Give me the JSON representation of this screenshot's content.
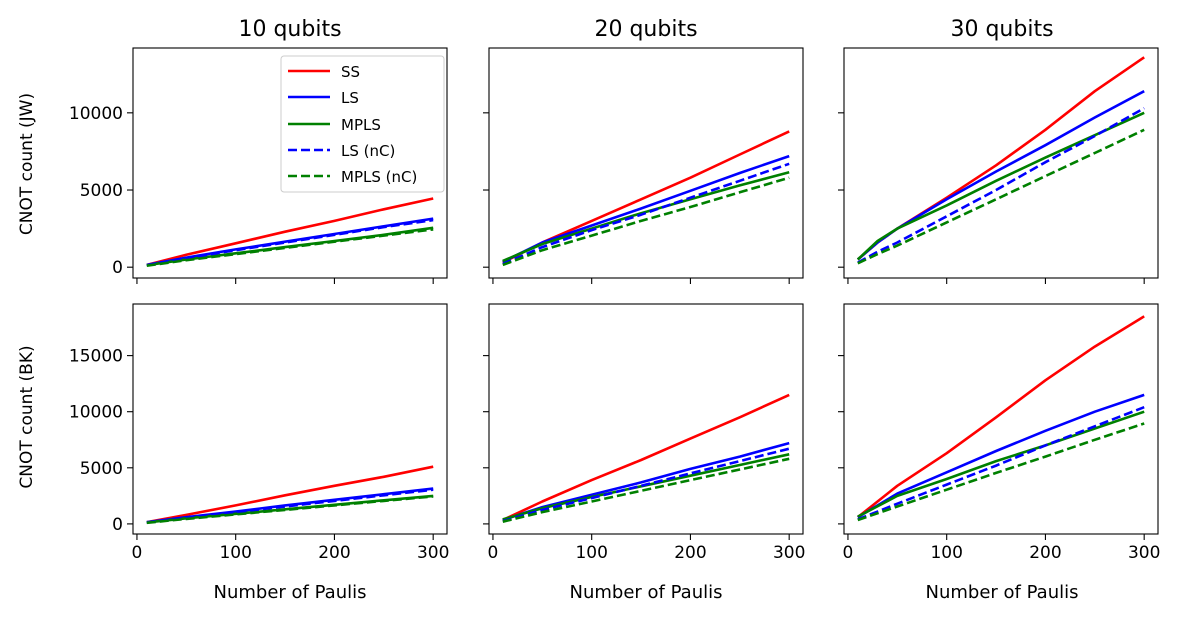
{
  "figure": {
    "column_titles": [
      "10 qubits",
      "20 qubits",
      "30 qubits"
    ],
    "row_ylabels": [
      "CNOT count (JW)",
      "CNOT count (BK)"
    ],
    "xlabel": "Number of Paulis"
  },
  "colors": {
    "SS": "#ff0000",
    "LS": "#0000ff",
    "MPLS": "#008000"
  },
  "legend": [
    {
      "label": "SS",
      "color": "#ff0000",
      "dashed": false
    },
    {
      "label": "LS",
      "color": "#0000ff",
      "dashed": false
    },
    {
      "label": "MPLS",
      "color": "#008000",
      "dashed": false
    },
    {
      "label": "LS (nC)",
      "color": "#0000ff",
      "dashed": true
    },
    {
      "label": "MPLS (nC)",
      "color": "#008000",
      "dashed": true
    }
  ],
  "chart_data": [
    {
      "type": "line",
      "id": "jw-10",
      "title": "10 qubits",
      "ylabel": "CNOT count (JW)",
      "xlabel": "",
      "x": [
        10,
        50,
        100,
        150,
        200,
        250,
        300
      ],
      "xlim": [
        -4,
        314
      ],
      "ylim": [
        -700,
        14200
      ],
      "xticks": [
        0,
        100,
        200,
        300
      ],
      "yticks": [
        0,
        5000,
        10000
      ],
      "legend_position": "top-right",
      "series": [
        {
          "name": "SS",
          "values": [
            150,
            800,
            1550,
            2300,
            3000,
            3750,
            4450
          ]
        },
        {
          "name": "LS",
          "values": [
            150,
            620,
            1150,
            1650,
            2150,
            2650,
            3150
          ]
        },
        {
          "name": "MPLS",
          "values": [
            130,
            500,
            900,
            1300,
            1700,
            2100,
            2550
          ]
        },
        {
          "name": "LS (nC)",
          "values": [
            120,
            580,
            1100,
            1600,
            2100,
            2600,
            3050
          ]
        },
        {
          "name": "MPLS (nC)",
          "values": [
            100,
            450,
            850,
            1250,
            1650,
            2050,
            2450
          ]
        }
      ]
    },
    {
      "type": "line",
      "id": "jw-20",
      "title": "20 qubits",
      "ylabel": "",
      "xlabel": "",
      "x": [
        10,
        50,
        100,
        150,
        200,
        250,
        300
      ],
      "xlim": [
        -4,
        314
      ],
      "ylim": [
        -700,
        14200
      ],
      "xticks": [
        0,
        100,
        200,
        300
      ],
      "yticks": [
        0,
        5000,
        10000
      ],
      "series": [
        {
          "name": "SS",
          "values": [
            300,
            1600,
            3000,
            4400,
            5800,
            7300,
            8800
          ]
        },
        {
          "name": "LS",
          "values": [
            350,
            1600,
            2700,
            3800,
            4950,
            6100,
            7200
          ]
        },
        {
          "name": "MPLS",
          "values": [
            400,
            1500,
            2500,
            3500,
            4400,
            5300,
            6150
          ]
        },
        {
          "name": "LS (nC)",
          "values": [
            200,
            1300,
            2400,
            3400,
            4500,
            5600,
            6700
          ]
        },
        {
          "name": "MPLS (nC)",
          "values": [
            150,
            1100,
            2050,
            3000,
            3900,
            4850,
            5800
          ]
        }
      ]
    },
    {
      "type": "line",
      "id": "jw-30",
      "title": "30 qubits",
      "ylabel": "",
      "xlabel": "",
      "x": [
        10,
        30,
        50,
        100,
        150,
        200,
        250,
        300
      ],
      "xlim": [
        -4,
        314
      ],
      "ylim": [
        -700,
        14200
      ],
      "xticks": [
        0,
        100,
        200,
        300
      ],
      "yticks": [
        0,
        5000,
        10000
      ],
      "series": [
        {
          "name": "SS",
          "values": [
            500,
            1600,
            2500,
            4500,
            6600,
            8900,
            11400,
            13600
          ]
        },
        {
          "name": "LS",
          "values": [
            500,
            1600,
            2500,
            4400,
            6200,
            7900,
            9700,
            11400
          ]
        },
        {
          "name": "MPLS",
          "values": [
            500,
            1700,
            2500,
            4000,
            5600,
            7100,
            8550,
            10000
          ]
        },
        {
          "name": "LS (nC)",
          "values": [
            300,
            1000,
            1600,
            3300,
            5000,
            6800,
            8500,
            10300
          ]
        },
        {
          "name": "MPLS (nC)",
          "values": [
            250,
            850,
            1400,
            2900,
            4400,
            5900,
            7400,
            8900
          ]
        }
      ]
    },
    {
      "type": "line",
      "id": "bk-10",
      "title": "",
      "ylabel": "CNOT count (BK)",
      "xlabel": "Number of Paulis",
      "x": [
        10,
        50,
        100,
        150,
        200,
        250,
        300
      ],
      "xlim": [
        -4,
        314
      ],
      "ylim": [
        -900,
        19600
      ],
      "xticks": [
        0,
        100,
        200,
        300
      ],
      "yticks": [
        0,
        5000,
        10000,
        15000
      ],
      "series": [
        {
          "name": "SS",
          "values": [
            150,
            800,
            1650,
            2550,
            3400,
            4200,
            5100
          ]
        },
        {
          "name": "LS",
          "values": [
            150,
            600,
            1100,
            1650,
            2150,
            2650,
            3150
          ]
        },
        {
          "name": "MPLS",
          "values": [
            130,
            500,
            900,
            1300,
            1700,
            2100,
            2500
          ]
        },
        {
          "name": "LS (nC)",
          "values": [
            120,
            550,
            1050,
            1550,
            2050,
            2550,
            3050
          ]
        },
        {
          "name": "MPLS (nC)",
          "values": [
            100,
            450,
            850,
            1250,
            1650,
            2050,
            2450
          ]
        }
      ]
    },
    {
      "type": "line",
      "id": "bk-20",
      "title": "",
      "ylabel": "",
      "xlabel": "Number of Paulis",
      "x": [
        10,
        50,
        100,
        150,
        200,
        250,
        300
      ],
      "xlim": [
        -4,
        314
      ],
      "ylim": [
        -900,
        19600
      ],
      "xticks": [
        0,
        100,
        200,
        300
      ],
      "yticks": [
        0,
        5000,
        10000,
        15000
      ],
      "series": [
        {
          "name": "SS",
          "values": [
            350,
            2000,
            3900,
            5700,
            7600,
            9500,
            11500
          ]
        },
        {
          "name": "LS",
          "values": [
            350,
            1500,
            2600,
            3700,
            4900,
            6000,
            7200
          ]
        },
        {
          "name": "MPLS",
          "values": [
            400,
            1400,
            2400,
            3350,
            4300,
            5250,
            6200
          ]
        },
        {
          "name": "LS (nC)",
          "values": [
            250,
            1250,
            2300,
            3400,
            4500,
            5600,
            6700
          ]
        },
        {
          "name": "MPLS (nC)",
          "values": [
            200,
            1050,
            2000,
            2950,
            3900,
            4850,
            5800
          ]
        }
      ]
    },
    {
      "type": "line",
      "id": "bk-30",
      "title": "",
      "ylabel": "",
      "xlabel": "Number of Paulis",
      "x": [
        10,
        50,
        100,
        150,
        200,
        250,
        300
      ],
      "xlim": [
        -4,
        314
      ],
      "ylim": [
        -900,
        19600
      ],
      "xticks": [
        0,
        100,
        200,
        300
      ],
      "yticks": [
        0,
        5000,
        10000,
        15000
      ],
      "series": [
        {
          "name": "SS",
          "values": [
            600,
            3400,
            6300,
            9500,
            12800,
            15800,
            18500
          ]
        },
        {
          "name": "LS",
          "values": [
            600,
            2700,
            4600,
            6500,
            8300,
            10000,
            11500
          ]
        },
        {
          "name": "MPLS",
          "values": [
            650,
            2500,
            4000,
            5600,
            7000,
            8500,
            10000
          ]
        },
        {
          "name": "LS (nC)",
          "values": [
            400,
            1800,
            3500,
            5200,
            7000,
            8700,
            10400
          ]
        },
        {
          "name": "MPLS (nC)",
          "values": [
            350,
            1550,
            3050,
            4550,
            6000,
            7500,
            8950
          ]
        }
      ]
    }
  ]
}
